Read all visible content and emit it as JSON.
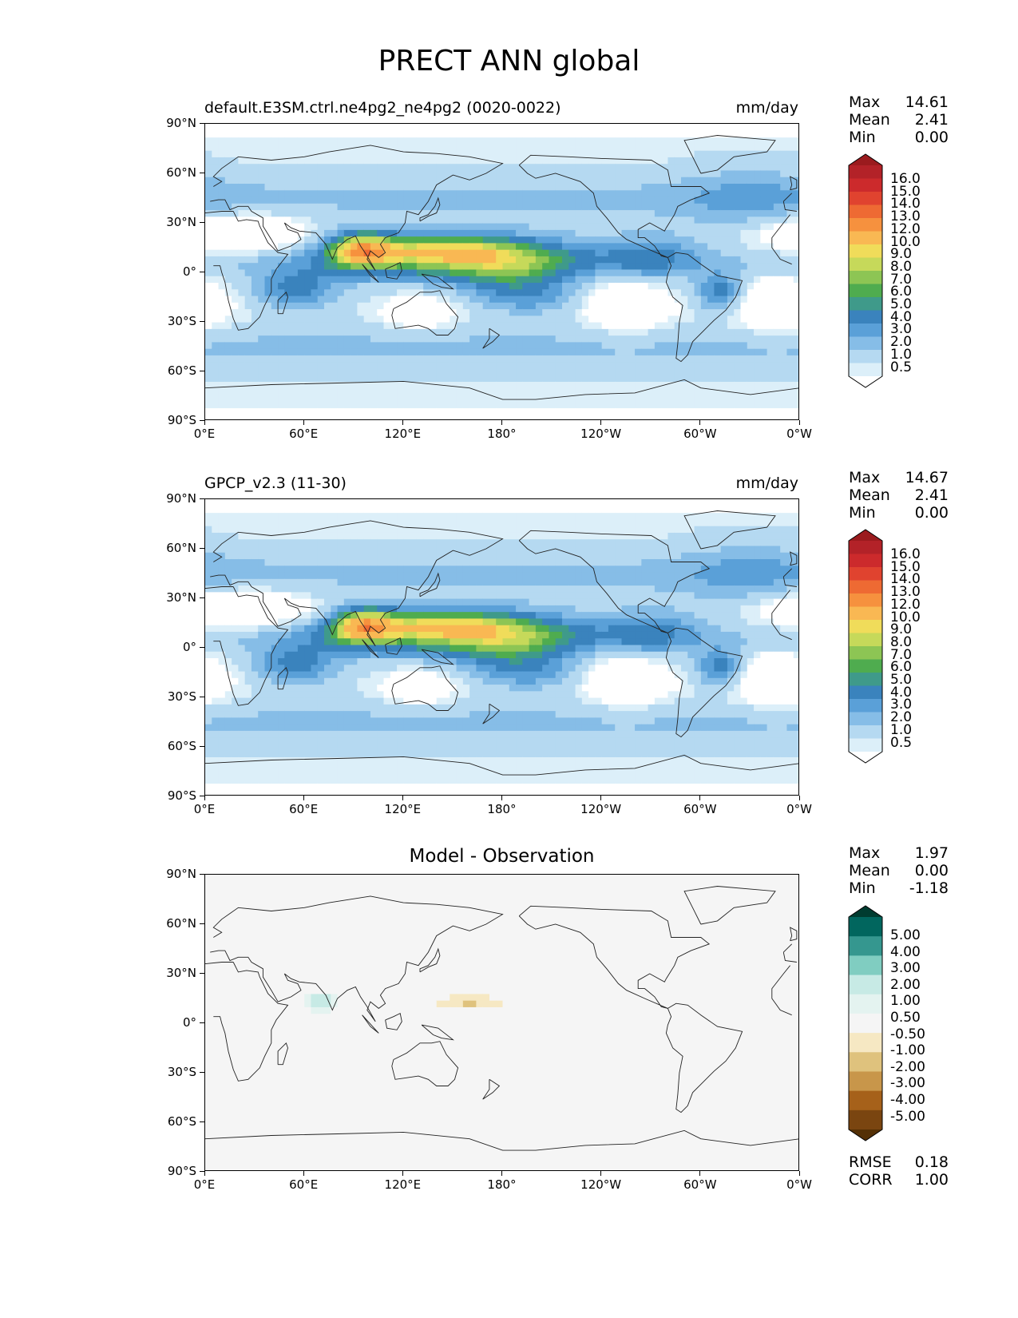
{
  "title": "PRECT ANN global",
  "panels": [
    {
      "title": "default.E3SM.ctrl.ne4pg2_ne4pg2 (0020-0022)",
      "units": "mm/day",
      "stats": [
        {
          "label": "Max",
          "value": "14.61"
        },
        {
          "label": "Mean",
          "value": "2.41"
        },
        {
          "label": "Min",
          "value": "0.00"
        }
      ],
      "colorbar": {
        "labels": [
          "16.0",
          "15.0",
          "14.0",
          "13.0",
          "12.0",
          "10.0",
          "9.0",
          "8.0",
          "7.0",
          "6.0",
          "5.0",
          "4.0",
          "3.0",
          "2.0",
          "1.0",
          "0.5"
        ],
        "colors": [
          "#9b1b1e",
          "#b32228",
          "#cc2a2c",
          "#e0432f",
          "#ee6a33",
          "#f6913e",
          "#f9b853",
          "#f0dc5a",
          "#c6d95a",
          "#8dc554",
          "#4fac4f",
          "#3f9a8a",
          "#3a83bd",
          "#5aa0d8",
          "#86bde7",
          "#b5d9f1",
          "#dceff9",
          "#ffffff"
        ]
      }
    },
    {
      "title": "GPCP_v2.3 (11-30)",
      "units": "mm/day",
      "stats": [
        {
          "label": "Max",
          "value": "14.67"
        },
        {
          "label": "Mean",
          "value": "2.41"
        },
        {
          "label": "Min",
          "value": "0.00"
        }
      ],
      "colorbar": {
        "labels": [
          "16.0",
          "15.0",
          "14.0",
          "13.0",
          "12.0",
          "10.0",
          "9.0",
          "8.0",
          "7.0",
          "6.0",
          "5.0",
          "4.0",
          "3.0",
          "2.0",
          "1.0",
          "0.5"
        ],
        "colors": [
          "#9b1b1e",
          "#b32228",
          "#cc2a2c",
          "#e0432f",
          "#ee6a33",
          "#f6913e",
          "#f9b853",
          "#f0dc5a",
          "#c6d95a",
          "#8dc554",
          "#4fac4f",
          "#3f9a8a",
          "#3a83bd",
          "#5aa0d8",
          "#86bde7",
          "#b5d9f1",
          "#dceff9",
          "#ffffff"
        ]
      }
    },
    {
      "title": "Model - Observation",
      "stats": [
        {
          "label": "Max",
          "value": "1.97"
        },
        {
          "label": "Mean",
          "value": "0.00"
        },
        {
          "label": "Min",
          "value": "-1.18"
        }
      ],
      "colorbar": {
        "labels": [
          "5.00",
          "4.00",
          "3.00",
          "2.00",
          "1.00",
          "0.50",
          "-0.50",
          "-1.00",
          "-2.00",
          "-3.00",
          "-4.00",
          "-5.00"
        ],
        "colors": [
          "#003c30",
          "#01665e",
          "#35978f",
          "#80cdc1",
          "#c7eae5",
          "#e4f3f0",
          "#f5f5f5",
          "#f6e8c3",
          "#dfc27d",
          "#c8964a",
          "#a6611a",
          "#7a4510",
          "#543005"
        ]
      },
      "metrics": [
        {
          "label": "RMSE",
          "value": "0.18"
        },
        {
          "label": "CORR",
          "value": "1.00"
        }
      ]
    }
  ],
  "axes": {
    "x_ticks": [
      "0°E",
      "60°E",
      "120°E",
      "180°",
      "120°W",
      "60°W",
      "0°W"
    ],
    "y_ticks": [
      "90°N",
      "60°N",
      "30°N",
      "0°",
      "30°S",
      "60°S",
      "90°S"
    ]
  },
  "chart_data": [
    {
      "type": "heatmap",
      "title": "default.E3SM.ctrl.ne4pg2_ne4pg2 (0020-0022)",
      "units": "mm/day",
      "x_range": [
        0,
        360
      ],
      "y_range": [
        -90,
        90
      ],
      "max": 14.61,
      "mean": 2.41,
      "min": 0.0
    },
    {
      "type": "heatmap",
      "title": "GPCP_v2.3 (11-30)",
      "units": "mm/day",
      "x_range": [
        0,
        360
      ],
      "y_range": [
        -90,
        90
      ],
      "max": 14.67,
      "mean": 2.41,
      "min": 0.0
    },
    {
      "type": "heatmap",
      "title": "Model - Observation",
      "x_range": [
        0,
        360
      ],
      "y_range": [
        -90,
        90
      ],
      "max": 1.97,
      "mean": 0.0,
      "min": -1.18,
      "rmse": 0.18,
      "corr": 1.0
    }
  ]
}
